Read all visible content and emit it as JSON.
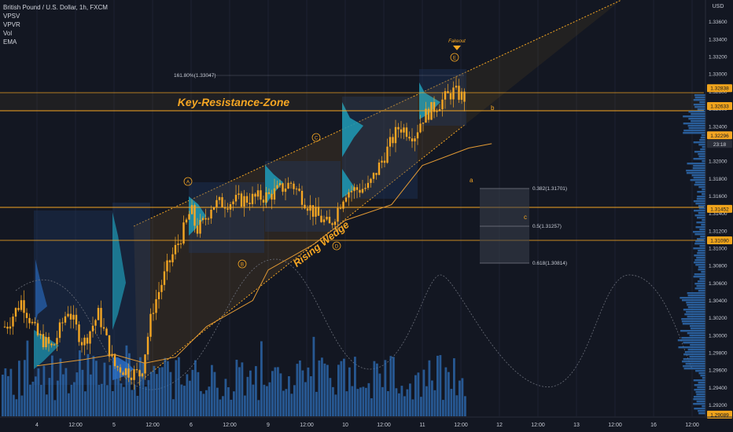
{
  "chart": {
    "symbol_line": "British Pound / U.S. Dollar, 1h, FXCM",
    "indicators": [
      "VPSV",
      "VPVR",
      "Vol",
      "EMA"
    ],
    "currency": "USD",
    "countdown": "23:18"
  },
  "colors": {
    "background": "#131722",
    "candle": "#f5a623",
    "zone_line": "#f5a623",
    "volume_bar": "#2f6fb8",
    "ema": "#e39a34",
    "wedge_fill": "#f5a623",
    "text": "#c8ccd6"
  },
  "chart_data": {
    "type": "candlestick",
    "y_axis": {
      "range": [
        1.2907,
        1.3385
      ],
      "ticks": [
        "1.33600",
        "1.33400",
        "1.33200",
        "1.33000",
        "1.32800",
        "1.32600",
        "1.32400",
        "1.32200",
        "1.32000",
        "1.31800",
        "1.31600",
        "1.31400",
        "1.31200",
        "1.31000",
        "1.30800",
        "1.30600",
        "1.30400",
        "1.30200",
        "1.30000",
        "1.29800",
        "1.29600",
        "1.29400",
        "1.29200"
      ],
      "price_tags": [
        {
          "label": "1.32838",
          "kind": "level"
        },
        {
          "label": "1.32633",
          "kind": "level"
        },
        {
          "label": "1.32296",
          "kind": "current"
        },
        {
          "label": "1.31452",
          "kind": "level"
        },
        {
          "label": "1.31090",
          "kind": "level"
        },
        {
          "label": "1.29089",
          "kind": "level"
        }
      ]
    },
    "x_axis": {
      "ticks": [
        "4",
        "12:00",
        "5",
        "12:00",
        "6",
        "12:00",
        "9",
        "12:00",
        "10",
        "12:00",
        "11",
        "12:00",
        "12",
        "12:00",
        "13",
        "12:00",
        "16",
        "12:00"
      ]
    },
    "horizontal_levels": [
      1.32838,
      1.32633,
      1.31452,
      1.3109
    ],
    "fibonacci": [
      {
        "label": "161.80%(1.33047)",
        "value": 1.33047
      },
      {
        "label": "0.382(1.31701)",
        "value": 1.31701
      },
      {
        "label": "0.5(1.31257)",
        "value": 1.31257
      },
      {
        "label": "0.618(1.30814)",
        "value": 1.30814
      }
    ],
    "wedge_label": "Rising Wedge",
    "zone_label": "Key-Resistance-Zone",
    "fakeout_label": "Fakeout",
    "wave_labels": [
      "A",
      "B",
      "C",
      "D",
      "E"
    ],
    "target_labels": [
      "a",
      "b",
      "c"
    ],
    "ema_series": [
      {
        "x": 4.0,
        "y": 1.2965
      },
      {
        "x": 4.6,
        "y": 1.2972
      },
      {
        "x": 5.0,
        "y": 1.2978
      },
      {
        "x": 5.4,
        "y": 1.2968
      },
      {
        "x": 5.8,
        "y": 1.2975
      },
      {
        "x": 6.2,
        "y": 1.301
      },
      {
        "x": 6.8,
        "y": 1.304
      },
      {
        "x": 9.0,
        "y": 1.3075
      },
      {
        "x": 9.6,
        "y": 1.3105
      },
      {
        "x": 10.0,
        "y": 1.3132
      },
      {
        "x": 10.6,
        "y": 1.315
      },
      {
        "x": 11.0,
        "y": 1.3195
      },
      {
        "x": 11.6,
        "y": 1.3215
      },
      {
        "x": 11.9,
        "y": 1.322
      }
    ],
    "price_path": [
      {
        "x": 3.6,
        "y": 1.301
      },
      {
        "x": 3.8,
        "y": 1.304
      },
      {
        "x": 4.0,
        "y": 1.3
      },
      {
        "x": 4.2,
        "y": 1.2985
      },
      {
        "x": 4.4,
        "y": 1.303
      },
      {
        "x": 4.6,
        "y": 1.299
      },
      {
        "x": 4.8,
        "y": 1.3025
      },
      {
        "x": 5.0,
        "y": 1.2965
      },
      {
        "x": 5.2,
        "y": 1.2958
      },
      {
        "x": 5.35,
        "y": 1.2955
      },
      {
        "x": 5.5,
        "y": 1.303
      },
      {
        "x": 5.7,
        "y": 1.308
      },
      {
        "x": 5.9,
        "y": 1.312
      },
      {
        "x": 6.0,
        "y": 1.3145
      },
      {
        "x": 6.2,
        "y": 1.312
      },
      {
        "x": 6.5,
        "y": 1.313
      },
      {
        "x": 6.8,
        "y": 1.315
      },
      {
        "x": 9.0,
        "y": 1.316
      },
      {
        "x": 9.3,
        "y": 1.3175
      },
      {
        "x": 9.6,
        "y": 1.314
      },
      {
        "x": 9.8,
        "y": 1.3125
      },
      {
        "x": 10.0,
        "y": 1.3165
      },
      {
        "x": 10.3,
        "y": 1.317
      },
      {
        "x": 10.5,
        "y": 1.3205
      },
      {
        "x": 10.7,
        "y": 1.324
      },
      {
        "x": 10.9,
        "y": 1.323
      },
      {
        "x": 11.0,
        "y": 1.325
      },
      {
        "x": 11.2,
        "y": 1.3265
      },
      {
        "x": 11.4,
        "y": 1.328
      },
      {
        "x": 11.6,
        "y": 1.327
      },
      {
        "x": 11.75,
        "y": 1.33
      },
      {
        "x": 11.85,
        "y": 1.3255
      },
      {
        "x": 11.95,
        "y": 1.323
      }
    ],
    "grid": false,
    "legend_position": "top-left"
  }
}
